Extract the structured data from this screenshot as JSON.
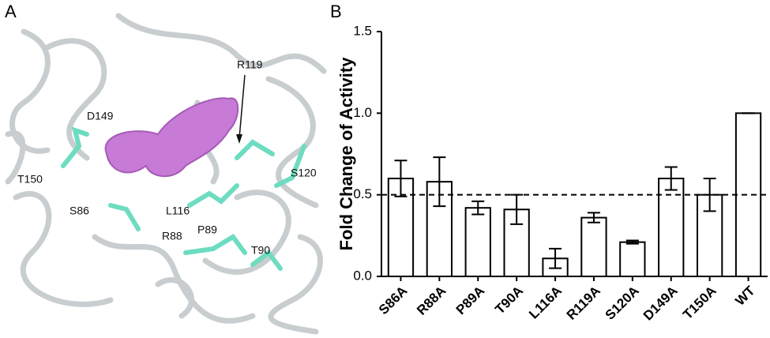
{
  "structure": {
    "panel_label": "A",
    "residue_labels": [
      "R119",
      "D149",
      "T150",
      "S86",
      "L116",
      "S120",
      "R88",
      "P89",
      "T90"
    ]
  },
  "chart_data": {
    "type": "bar",
    "panel_label": "B",
    "y_label": "Fold Change of Activity",
    "categories": [
      "S86A",
      "R88A",
      "P89A",
      "T90A",
      "L116A",
      "R119A",
      "S120A",
      "D149A",
      "T150A",
      "WT"
    ],
    "values": [
      0.6,
      0.58,
      0.42,
      0.41,
      0.11,
      0.36,
      0.21,
      0.6,
      0.5,
      1.0
    ],
    "errors": [
      0.11,
      0.15,
      0.04,
      0.09,
      0.06,
      0.03,
      0.01,
      0.07,
      0.1,
      0
    ],
    "color": "#ffffff",
    "edge_color": "#000000",
    "reference_line": 0.5,
    "ylim": [
      0,
      1.5
    ],
    "yticks": [
      {
        "value": 0,
        "label": "0.0"
      },
      0.5,
      {
        "value": 1,
        "label": "1.0"
      },
      1.5
    ]
  }
}
